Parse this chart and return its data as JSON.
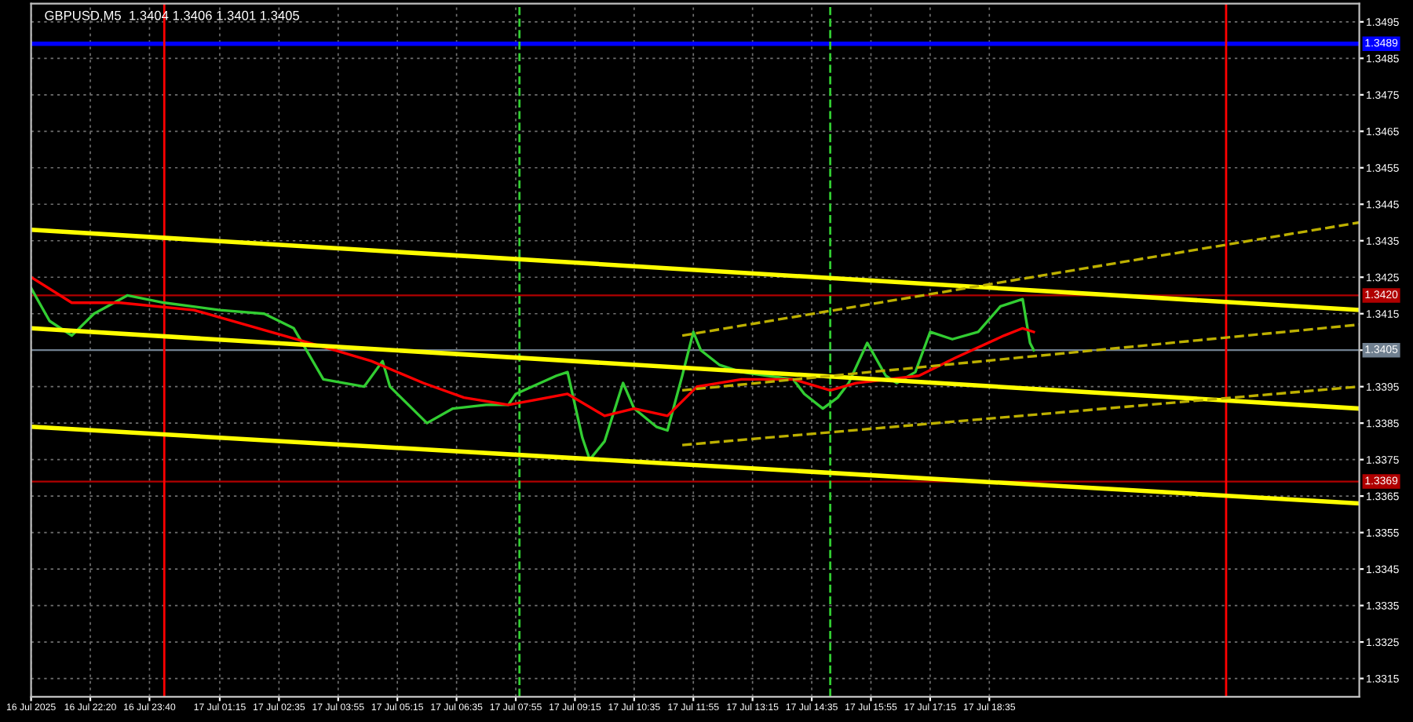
{
  "chart_data": {
    "type": "line",
    "title": "GBPUSD,M5  1.3404 1.3406 1.3401 1.3405",
    "xlim": [
      "2025-07-16T21:00",
      "2025-07-18T02:55"
    ],
    "ylim": [
      1.331,
      1.35
    ],
    "xticks": [
      {
        "value": "2025-07-16T21:00",
        "label": "16 Jul 2025"
      },
      {
        "value": "2025-07-16T22:20",
        "label": "16 Jul 22:20"
      },
      {
        "value": "2025-07-16T23:40",
        "label": "16 Jul 23:40"
      },
      {
        "value": "2025-07-17T01:15",
        "label": "17 Jul 01:15"
      },
      {
        "value": "2025-07-17T02:35",
        "label": "17 Jul 02:35"
      },
      {
        "value": "2025-07-17T03:55",
        "label": "17 Jul 03:55"
      },
      {
        "value": "2025-07-17T05:15",
        "label": "17 Jul 05:15"
      },
      {
        "value": "2025-07-17T06:35",
        "label": "17 Jul 06:35"
      },
      {
        "value": "2025-07-17T07:55",
        "label": "17 Jul 07:55"
      },
      {
        "value": "2025-07-17T09:15",
        "label": "17 Jul 09:15"
      },
      {
        "value": "2025-07-17T10:35",
        "label": "17 Jul 10:35"
      },
      {
        "value": "2025-07-17T11:55",
        "label": "17 Jul 11:55"
      },
      {
        "value": "2025-07-17T13:15",
        "label": "17 Jul 13:15"
      },
      {
        "value": "2025-07-17T14:35",
        "label": "17 Jul 14:35"
      },
      {
        "value": "2025-07-17T15:55",
        "label": "17 Jul 15:55"
      },
      {
        "value": "2025-07-17T17:15",
        "label": "17 Jul 17:15"
      },
      {
        "value": "2025-07-17T18:35",
        "label": "17 Jul 18:35"
      }
    ],
    "yticks": [
      1.3315,
      1.3325,
      1.3335,
      1.3345,
      1.3355,
      1.3365,
      1.3375,
      1.3385,
      1.3395,
      1.3405,
      1.3415,
      1.3425,
      1.3435,
      1.3445,
      1.3455,
      1.3465,
      1.3475,
      1.3485,
      1.3495
    ],
    "grid": true,
    "series": [
      {
        "color": "#32cd32",
        "x": [
          "2025-07-16T21:00",
          "2025-07-16T21:25",
          "2025-07-16T21:55",
          "2025-07-16T22:25",
          "2025-07-16T23:10",
          "2025-07-17T00:00",
          "2025-07-17T01:15",
          "2025-07-17T02:15",
          "2025-07-17T02:55",
          "2025-07-17T03:35",
          "2025-07-17T04:30",
          "2025-07-17T04:55",
          "2025-07-17T05:05",
          "2025-07-17T05:55",
          "2025-07-17T06:30",
          "2025-07-17T07:15",
          "2025-07-17T07:45",
          "2025-07-17T07:55",
          "2025-07-17T08:50",
          "2025-07-17T09:05",
          "2025-07-17T09:25",
          "2025-07-17T09:35",
          "2025-07-17T09:55",
          "2025-07-17T10:20",
          "2025-07-17T10:35",
          "2025-07-17T11:05",
          "2025-07-17T11:20",
          "2025-07-17T11:40",
          "2025-07-17T11:55",
          "2025-07-17T12:05",
          "2025-07-17T12:30",
          "2025-07-17T13:00",
          "2025-07-17T13:35",
          "2025-07-17T14:10",
          "2025-07-17T14:25",
          "2025-07-17T14:50",
          "2025-07-17T15:10",
          "2025-07-17T15:25",
          "2025-07-17T15:50",
          "2025-07-17T16:15",
          "2025-07-17T16:30",
          "2025-07-17T16:55",
          "2025-07-17T17:15",
          "2025-07-17T17:45",
          "2025-07-17T18:20",
          "2025-07-17T18:50",
          "2025-07-17T19:20",
          "2025-07-17T19:30",
          "2025-07-17T19:35"
        ],
        "values": [
          1.3422,
          1.3413,
          1.3409,
          1.3415,
          1.342,
          1.3418,
          1.3416,
          1.3415,
          1.3411,
          1.3397,
          1.3395,
          1.3402,
          1.3395,
          1.3385,
          1.3389,
          1.339,
          1.339,
          1.3393,
          1.3398,
          1.3399,
          1.3381,
          1.3375,
          1.338,
          1.3396,
          1.3389,
          1.3384,
          1.3383,
          1.3398,
          1.341,
          1.3405,
          1.3401,
          1.3399,
          1.3398,
          1.3397,
          1.3393,
          1.3389,
          1.3392,
          1.3396,
          1.3407,
          1.3398,
          1.3396,
          1.3399,
          1.341,
          1.3408,
          1.341,
          1.3417,
          1.3419,
          1.3407,
          1.3405
        ]
      },
      {
        "color": "#ff0000",
        "x": [
          "2025-07-16T21:00",
          "2025-07-16T21:55",
          "2025-07-16T23:00",
          "2025-07-17T00:40",
          "2025-07-17T03:50",
          "2025-07-17T04:40",
          "2025-07-17T05:50",
          "2025-07-17T06:45",
          "2025-07-17T07:45",
          "2025-07-17T09:05",
          "2025-07-17T09:55",
          "2025-07-17T10:35",
          "2025-07-17T11:20",
          "2025-07-17T12:00",
          "2025-07-17T13:00",
          "2025-07-17T14:10",
          "2025-07-17T15:00",
          "2025-07-17T15:35",
          "2025-07-17T17:00",
          "2025-07-17T17:50",
          "2025-07-17T18:55",
          "2025-07-17T19:20",
          "2025-07-17T19:35"
        ],
        "values": [
          1.3425,
          1.3418,
          1.3418,
          1.3416,
          1.3405,
          1.3402,
          1.3396,
          1.3392,
          1.339,
          1.3393,
          1.3387,
          1.3389,
          1.3387,
          1.3395,
          1.3397,
          1.3397,
          1.3394,
          1.3396,
          1.3398,
          1.3403,
          1.3409,
          1.3411,
          1.341
        ]
      },
      {
        "color": "#ffff00",
        "x": [
          "2025-07-16T21:00",
          "2025-07-18T02:55"
        ],
        "values": [
          1.3438,
          1.3416
        ]
      },
      {
        "color": "#ffff00",
        "x": [
          "2025-07-16T21:00",
          "2025-07-18T02:55"
        ],
        "values": [
          1.3411,
          1.3389
        ]
      },
      {
        "color": "#ffff00",
        "x": [
          "2025-07-16T21:00",
          "2025-07-18T02:55"
        ],
        "values": [
          1.3384,
          1.3363
        ]
      },
      {
        "color": "#bdb000",
        "line_style": "dashed",
        "x": [
          "2025-07-17T11:40",
          "2025-07-18T02:55"
        ],
        "values": [
          1.3409,
          1.344
        ]
      },
      {
        "color": "#bdb000",
        "line_style": "dashed",
        "x": [
          "2025-07-17T11:40",
          "2025-07-18T02:55"
        ],
        "values": [
          1.3394,
          1.3412
        ]
      },
      {
        "color": "#bdb000",
        "line_style": "dashed",
        "x": [
          "2025-07-17T11:40",
          "2025-07-18T02:55"
        ],
        "values": [
          1.3379,
          1.3395
        ]
      }
    ],
    "ref_lines": [
      {
        "axis": "y",
        "value": 1.3489,
        "label": "1.3489",
        "color": "#0000ff"
      },
      {
        "axis": "y",
        "value": 1.342,
        "label": "1.3420",
        "color": "#b00000"
      },
      {
        "axis": "y",
        "value": 1.3405,
        "label": "1.3405",
        "color": "#708090"
      },
      {
        "axis": "y",
        "value": 1.3369,
        "label": "1.3369",
        "color": "#b00000"
      },
      {
        "axis": "x",
        "value": "2025-07-17T00:00",
        "color": "#ff0000"
      },
      {
        "axis": "x",
        "value": "2025-07-17T23:55",
        "color": "#ff0000"
      },
      {
        "axis": "x",
        "value": "2025-07-17T08:00",
        "color": "#32cd32",
        "line_style": "dashed"
      },
      {
        "axis": "x",
        "value": "2025-07-17T15:00",
        "color": "#32cd32",
        "line_style": "dashed"
      }
    ]
  }
}
